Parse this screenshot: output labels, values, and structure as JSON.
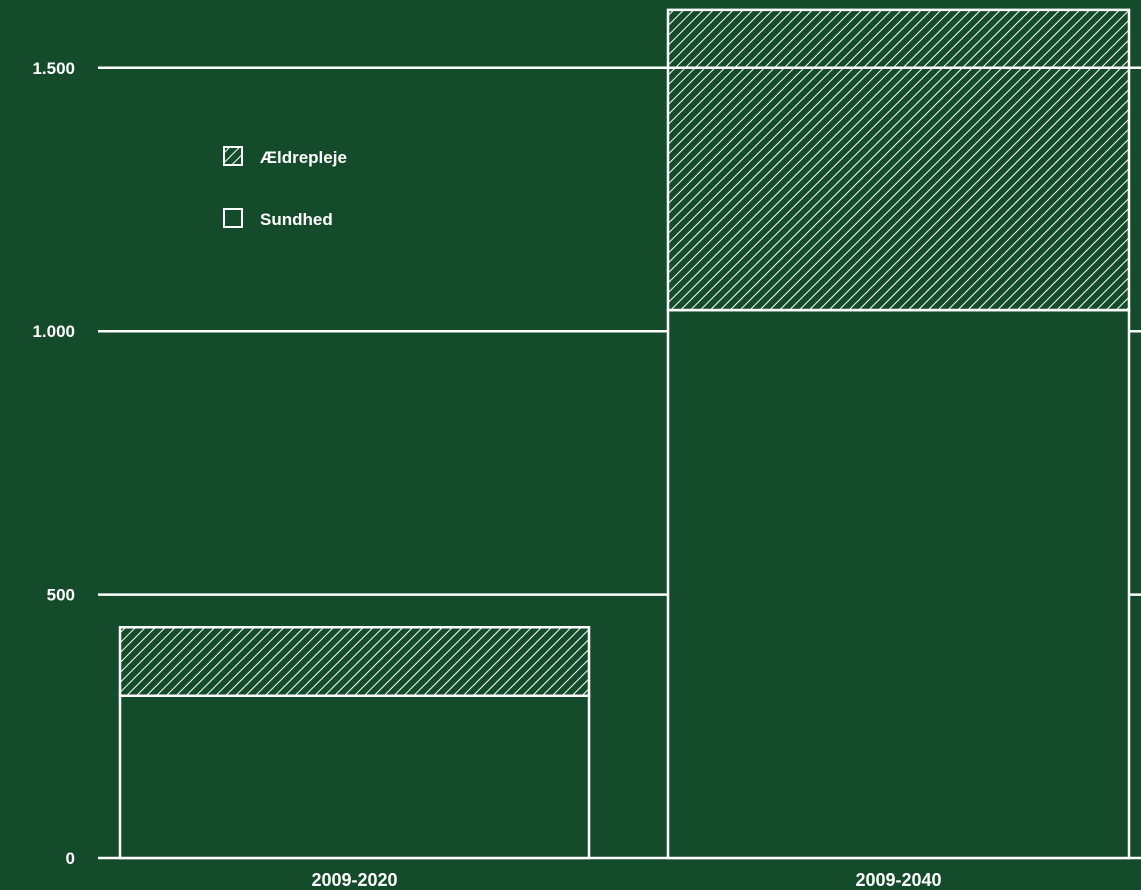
{
  "colors": {
    "background": "#144b2a",
    "foreground": "#ffffff"
  },
  "chart_data": {
    "type": "bar",
    "stacked": true,
    "categories": [
      "2009-2020",
      "2009-2040"
    ],
    "series": [
      {
        "name": "Sundhed",
        "values": [
          308,
          1040
        ],
        "pattern": "solid-outline"
      },
      {
        "name": "Ældrepleje",
        "values": [
          130,
          570
        ],
        "pattern": "hatched"
      }
    ],
    "legend": {
      "placement": "top-left",
      "order": [
        "Ældrepleje",
        "Sundhed"
      ]
    },
    "yticks": [
      0,
      500,
      1000,
      1500
    ],
    "ytick_labels": [
      "0",
      "500",
      "1.000",
      "1.500"
    ],
    "ylim": [
      0,
      1650
    ],
    "grid": true
  }
}
